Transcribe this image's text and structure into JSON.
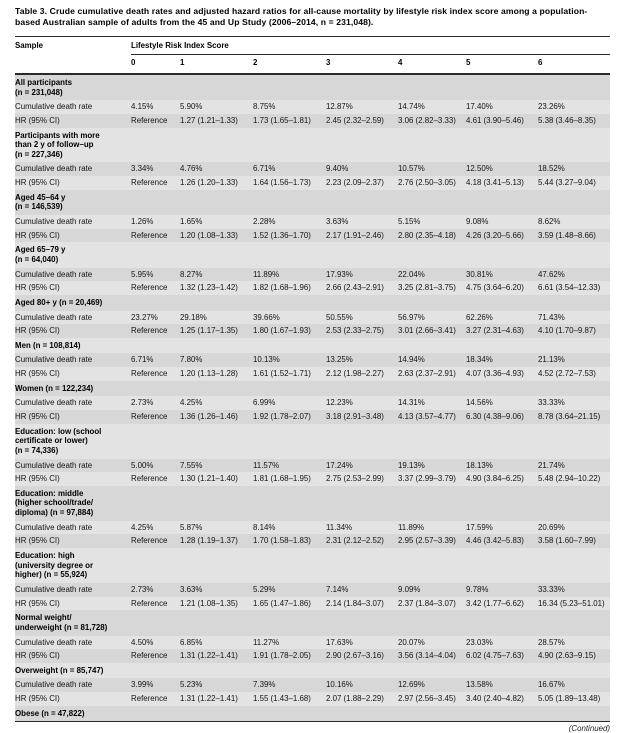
{
  "title": "Table 3. Crude cumulative death rates and adjusted hazard ratios for all-cause mortality by lifestyle risk index score among a population-based Australian sample of adults from the 45 and Up Study (2006–2014, n = 231,048).",
  "header": {
    "sample_label": "Sample",
    "score_group_label": "Lifestyle Risk Index Score",
    "score_columns": [
      "0",
      "1",
      "2",
      "3",
      "4",
      "5",
      "6"
    ]
  },
  "row_labels": {
    "death_rate": "Cumulative death rate",
    "hr": "HR (95% CI)"
  },
  "continued_note": "(Continued)",
  "colors": {
    "shade_header_row": "#d7d7d7",
    "shade_data_row": "#e3e3e3",
    "rule": "#2a2a2a",
    "page_bottom_band": "#d9e3ec"
  },
  "chart_data": {
    "type": "table",
    "title": "Crude cumulative death rates and adjusted hazard ratios for all-cause mortality by lifestyle risk index score",
    "columns": [
      "0",
      "1",
      "2",
      "3",
      "4",
      "5",
      "6"
    ]
  },
  "sections": [
    {
      "name": "All participants\n(n = 231,048)",
      "death_rates": [
        "4.15%",
        "5.90%",
        "8.75%",
        "12.87%",
        "14.74%",
        "17.40%",
        "23.26%"
      ],
      "hrs": [
        "Reference",
        "1.27 (1.21–1.33)",
        "1.73 (1.65–1.81)",
        "2.45 (2.32–2.59)",
        "3.06 (2.82–3.33)",
        "4.61 (3.90–5.46)",
        "5.38 (3.46–8.35)"
      ]
    },
    {
      "name": "Participants with more\nthan 2 y of follow–up\n(n = 227,346)",
      "death_rates": [
        "3.34%",
        "4.76%",
        "6.71%",
        "9.40%",
        "10.57%",
        "12.50%",
        "18.52%"
      ],
      "hrs": [
        "Reference",
        "1.26 (1.20–1.33)",
        "1.64 (1.56–1.73)",
        "2.23 (2.09–2.37)",
        "2.76 (2.50–3.05)",
        "4.18 (3.41–5.13)",
        "5.44 (3.27–9.04)"
      ]
    },
    {
      "name": "Aged 45–64 y\n(n = 146,539)",
      "death_rates": [
        "1.26%",
        "1.65%",
        "2.28%",
        "3.63%",
        "5.15%",
        "9.08%",
        "8.62%"
      ],
      "hrs": [
        "Reference",
        "1.20 (1.08–1.33)",
        "1.52 (1.36–1.70)",
        "2.17 (1.91–2.46)",
        "2.80 (2.35–4.18)",
        "4.26 (3.20–5.66)",
        "3.59 (1.48–8.66)"
      ]
    },
    {
      "name": "Aged 65–79 y\n(n = 64,040)",
      "death_rates": [
        "5.95%",
        "8.27%",
        "11.89%",
        "17.93%",
        "22.04%",
        "30.81%",
        "47.62%"
      ],
      "hrs": [
        "Reference",
        "1.32 (1.23–1.42)",
        "1.82 (1.68–1.96)",
        "2.66 (2.43–2.91)",
        "3.25 (2.81–3.75)",
        "4.75 (3.64–6.20)",
        "6.61 (3.54–12.33)"
      ]
    },
    {
      "name": "Aged 80+ y (n = 20,469)",
      "death_rates": [
        "23.27%",
        "29.18%",
        "39.66%",
        "50.55%",
        "56.97%",
        "62.26%",
        "71.43%"
      ],
      "hrs": [
        "Reference",
        "1.25 (1.17–1.35)",
        "1.80 (1.67–1.93)",
        "2.53 (2.33–2.75)",
        "3.01 (2.66–3.41)",
        "3.27 (2.31–4.63)",
        "4.10 (1.70–9.87)"
      ]
    },
    {
      "name": "Men (n = 108,814)",
      "death_rates": [
        "6.71%",
        "7.80%",
        "10.13%",
        "13.25%",
        "14.94%",
        "18.34%",
        "21.13%"
      ],
      "hrs": [
        "Reference",
        "1.20 (1.13–1.28)",
        "1.61 (1.52–1.71)",
        "2.12 (1.98–2.27)",
        "2.63 (2.37–2.91)",
        "4.07 (3.36–4.93)",
        "4.52 (2.72–7.53)"
      ]
    },
    {
      "name": "Women (n = 122,234)",
      "death_rates": [
        "2.73%",
        "4.25%",
        "6.99%",
        "12.23%",
        "14.31%",
        "14.56%",
        "33.33%"
      ],
      "hrs": [
        "Reference",
        "1.36 (1.26–1.46)",
        "1.92 (1.78–2.07)",
        "3.18 (2.91–3.48)",
        "4.13 (3.57–4.77)",
        "6.30 (4.38–9.06)",
        "8.78 (3.64–21.15)"
      ]
    },
    {
      "name": "Education: low (school\ncertificate or lower)\n(n = 74,336)",
      "death_rates": [
        "5.00%",
        "7.55%",
        "11.57%",
        "17.24%",
        "19.13%",
        "18.13%",
        "21.74%"
      ],
      "hrs": [
        "Reference",
        "1.30 (1.21–1.40)",
        "1.81 (1.68–1.95)",
        "2.75 (2.53–2.99)",
        "3.37 (2.99–3.79)",
        "4.90 (3.84–6.25)",
        "5.48 (2.94–10.22)"
      ]
    },
    {
      "name": "Education: middle\n(higher school/trade/\ndiploma) (n = 97,884)",
      "death_rates": [
        "4.25%",
        "5.87%",
        "8.14%",
        "11.34%",
        "11.89%",
        "17.59%",
        "20.69%"
      ],
      "hrs": [
        "Reference",
        "1.28 (1.19–1.37)",
        "1.70 (1.58–1.83)",
        "2.31 (2.12–2.52)",
        "2.95 (2.57–3.39)",
        "4.46 (3.42–5.83)",
        "3.58 (1.60–7.99)"
      ]
    },
    {
      "name": "Education: high\n(university degree or\nhigher) (n = 55,924)",
      "death_rates": [
        "2.73%",
        "3.63%",
        "5.29%",
        "7.14%",
        "9.09%",
        "9.78%",
        "33.33%"
      ],
      "hrs": [
        "Reference",
        "1.21 (1.08–1.35)",
        "1.65 (1.47–1.86)",
        "2.14 (1.84–3.07)",
        "2.37 (1.84–3.07)",
        "3.42 (1.77–6.62)",
        "16.34 (5.23–51.01)"
      ]
    },
    {
      "name": "Normal weight/\nunderweight (n = 81,728)",
      "death_rates": [
        "4.50%",
        "6.85%",
        "11.27%",
        "17.63%",
        "20.07%",
        "23.03%",
        "28.57%"
      ],
      "hrs": [
        "Reference",
        "1.31 (1.22–1.41)",
        "1.91 (1.78–2.05)",
        "2.90 (2.67–3.16)",
        "3.56 (3.14–4.04)",
        "6.02 (4.75–7.63)",
        "4.90 (2.63–9.15)"
      ]
    },
    {
      "name": "Overweight (n = 85,747)",
      "death_rates": [
        "3.99%",
        "5.23%",
        "7.39%",
        "10.16%",
        "12.69%",
        "13.58%",
        "16.67%"
      ],
      "hrs": [
        "Reference",
        "1.31 (1.22–1.41)",
        "1.55 (1.43–1.68)",
        "2.07 (1.88–2.29)",
        "2.97 (2.56–3.45)",
        "3.40 (2.40–4.82)",
        "5.05 (1.89–13.48)"
      ]
    },
    {
      "name": "Obese (n = 47,822)",
      "death_rates": null,
      "hrs": null
    }
  ]
}
